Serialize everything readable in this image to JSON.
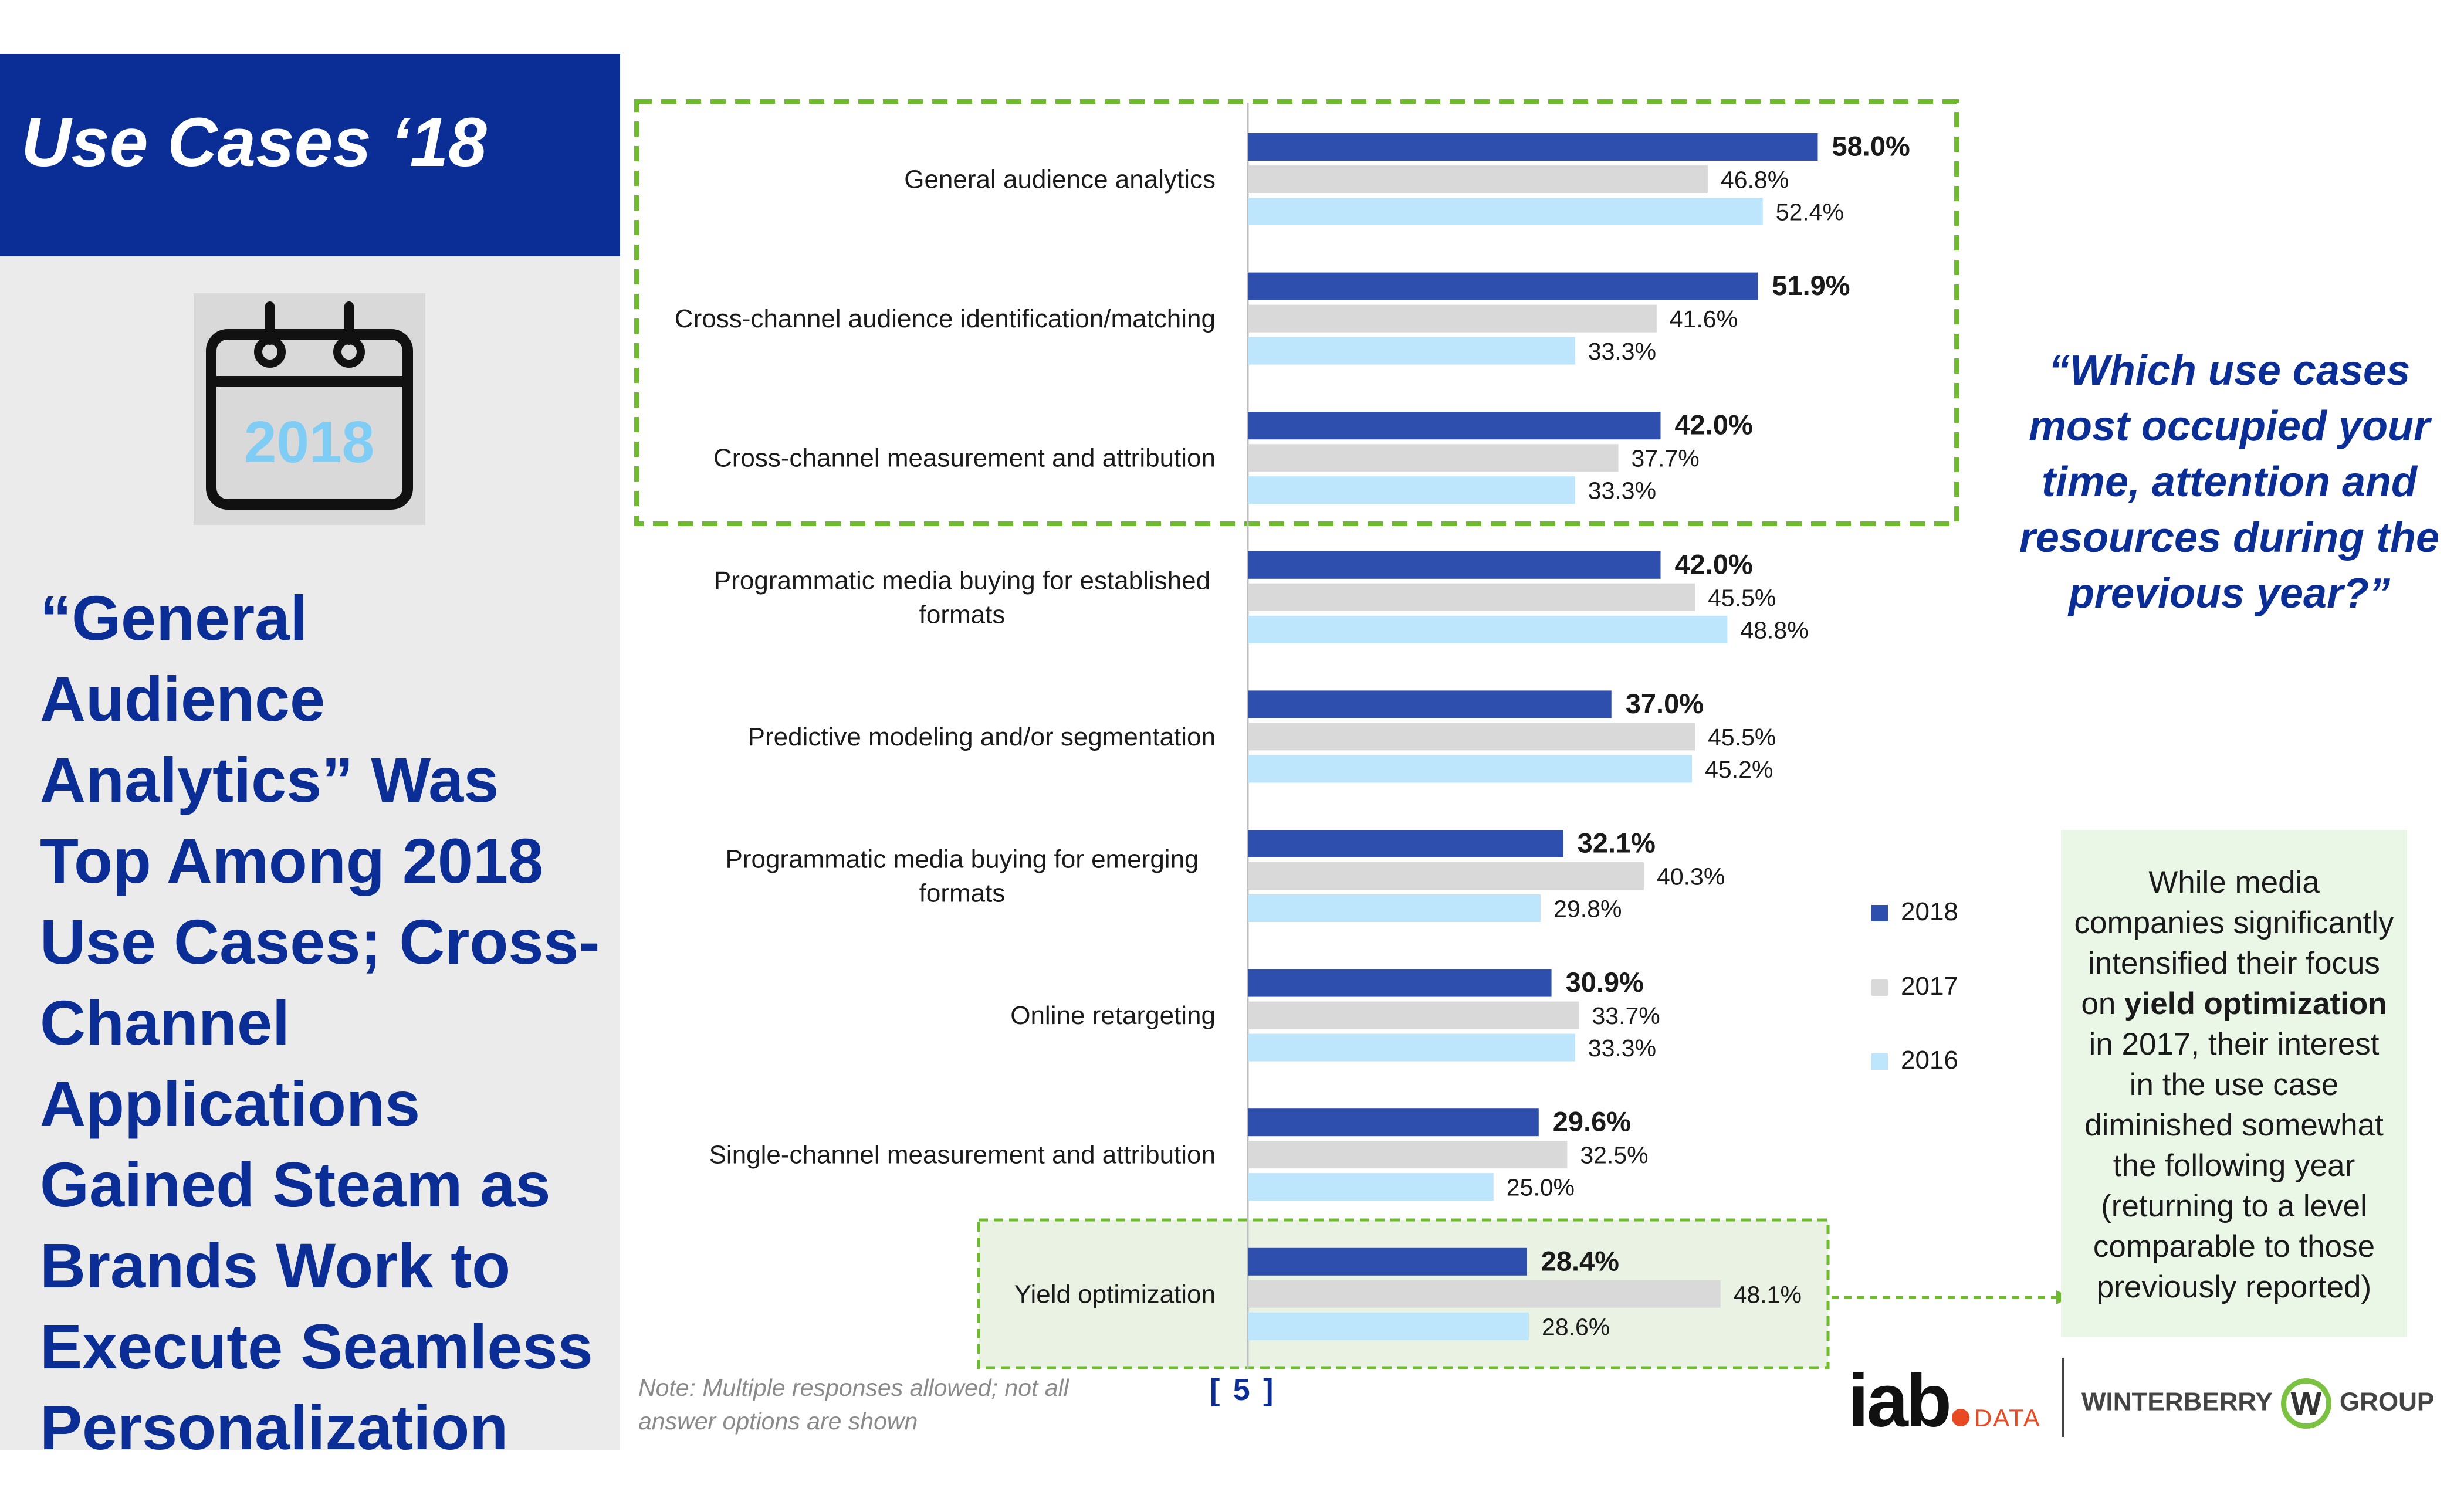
{
  "header": {
    "title": "Use Cases ‘18"
  },
  "calendar": {
    "year": "2018"
  },
  "headline": "“General Audience Analytics” Was Top Among 2018 Use Cases; Cross-Channel Applications Gained Steam as Brands Work to Execute Seamless Personalization",
  "question": "“Which use cases most occupied your time, attention and resources during the previous year?”",
  "callout": {
    "pre": "While media companies significantly intensified their focus on ",
    "bold": "yield optimization",
    "post": " in 2017, their interest in the use case diminished somewhat the following year (returning to a level comparable to those previously reported)"
  },
  "note": "Note: Multiple responses allowed; not all answer options are shown",
  "page_number": "[ 5 ]",
  "logos": {
    "iab": "iab",
    "iab_sub": "DATA",
    "winterberry_left": "WINTERBERRY",
    "winterberry_mark": "W",
    "winterberry_right": "GROUP"
  },
  "colors": {
    "s2018": "#2e4fae",
    "s2017": "#d9d9d9",
    "s2016": "#bde5fb",
    "brand_blue": "#0a2d96",
    "highlight_green": "#7cc242"
  },
  "chart_data": {
    "type": "bar",
    "orientation": "horizontal",
    "categories": [
      [
        "General audience analytics"
      ],
      [
        "Cross-channel audience identification/matching"
      ],
      [
        "Cross-channel measurement and attribution"
      ],
      [
        "Programmatic media buying for established",
        "formats"
      ],
      [
        "Predictive modeling and/or segmentation"
      ],
      [
        "Programmatic media buying for emerging",
        "formats"
      ],
      [
        "Online retargeting"
      ],
      [
        "Single-channel measurement and attribution"
      ],
      [
        "Yield optimization"
      ]
    ],
    "series": [
      {
        "name": "2018",
        "color": "#2e4fae",
        "values": [
          58.0,
          51.9,
          42.0,
          42.0,
          37.0,
          32.1,
          30.9,
          29.6,
          28.4
        ]
      },
      {
        "name": "2017",
        "color": "#d9d9d9",
        "values": [
          46.8,
          41.6,
          37.7,
          45.5,
          45.5,
          40.3,
          33.7,
          32.5,
          48.1
        ]
      },
      {
        "name": "2016",
        "color": "#bde5fb",
        "values": [
          52.4,
          33.3,
          33.3,
          48.8,
          45.2,
          29.8,
          33.3,
          25.0,
          28.6
        ]
      }
    ],
    "value_suffix": "%",
    "legend": [
      "2018",
      "2017",
      "2016"
    ],
    "legend_position": "right",
    "xlim": [
      0,
      100
    ],
    "grid": false
  }
}
